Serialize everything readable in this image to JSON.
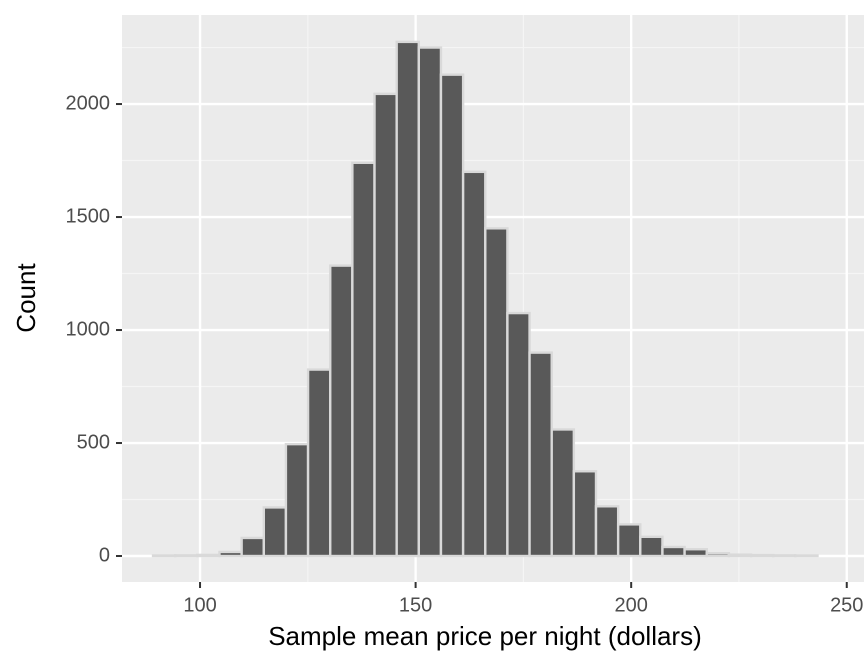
{
  "chart_data": {
    "type": "histogram",
    "x_label": "Sample mean price per night (dollars)",
    "y_label": "Count",
    "bins": [
      89.1,
      94.24,
      99.37,
      104.51,
      109.65,
      114.79,
      119.92,
      125.06,
      130.2,
      135.33,
      140.47,
      145.61,
      150.74,
      155.88,
      161.02,
      166.16,
      171.29,
      176.43,
      181.57,
      186.7,
      191.84,
      196.98,
      202.11,
      207.25,
      212.39,
      217.53,
      222.66,
      227.8,
      232.94,
      238.07,
      243.21
    ],
    "counts": [
      2,
      3,
      5,
      18,
      80,
      215,
      495,
      825,
      1285,
      1740,
      2045,
      2275,
      2250,
      2130,
      1700,
      1450,
      1075,
      900,
      560,
      375,
      220,
      140,
      85,
      40,
      30,
      12,
      6,
      4,
      3,
      2
    ],
    "color": "#595959",
    "edge_color": "#d9d9d9",
    "xlim": [
      81.9,
      254
    ],
    "ylim": [
      -115,
      2394
    ],
    "xticks": [
      100,
      150,
      200,
      250
    ],
    "yticks": [
      0,
      500,
      1000,
      1500,
      2000
    ],
    "x_minor_grid": [
      125,
      175,
      225
    ],
    "y_minor_grid": [
      250,
      750,
      1250,
      1750,
      2250
    ],
    "grid": true
  }
}
